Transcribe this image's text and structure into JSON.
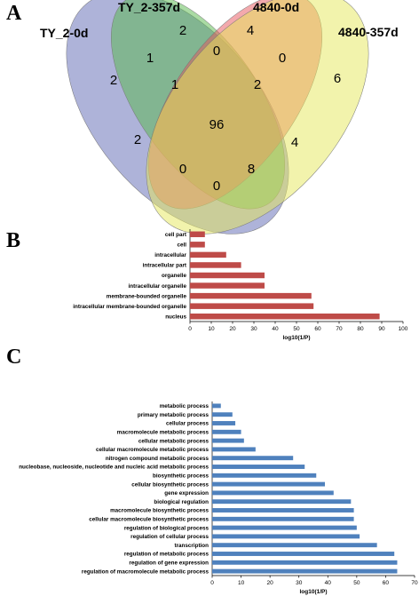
{
  "panels": {
    "a": "A",
    "b": "B",
    "c": "C"
  },
  "chart_data": [
    {
      "type": "venn",
      "panel": "A",
      "sets": [
        "TY_2-0d",
        "TY_2-357d",
        "4840-0d",
        "4840-357d"
      ],
      "colors": [
        "#5e67b4",
        "#56b74a",
        "#e8545c",
        "#e6e85a"
      ],
      "regions": [
        {
          "sets": [
            "TY_2-0d"
          ],
          "value": 2
        },
        {
          "sets": [
            "TY_2-357d"
          ],
          "value": 2
        },
        {
          "sets": [
            "4840-0d"
          ],
          "value": 4
        },
        {
          "sets": [
            "4840-357d"
          ],
          "value": 6
        },
        {
          "sets": [
            "TY_2-0d",
            "TY_2-357d"
          ],
          "value": 1
        },
        {
          "sets": [
            "TY_2-357d",
            "4840-0d"
          ],
          "value": 0
        },
        {
          "sets": [
            "4840-0d",
            "4840-357d"
          ],
          "value": 0
        },
        {
          "sets": [
            "TY_2-0d",
            "TY_2-357d",
            "4840-0d"
          ],
          "value": 1
        },
        {
          "sets": [
            "TY_2-357d",
            "4840-0d",
            "4840-357d"
          ],
          "value": 2
        },
        {
          "sets": [
            "TY_2-0d",
            "TY_2-357d",
            "4840-0d",
            "4840-357d"
          ],
          "value": 96
        },
        {
          "sets": [
            "TY_2-0d",
            "4840-0d"
          ],
          "value": 2
        },
        {
          "sets": [
            "TY_2-357d",
            "4840-357d"
          ],
          "value": 4
        },
        {
          "sets": [
            "TY_2-0d",
            "4840-0d",
            "4840-357d"
          ],
          "value": 0
        },
        {
          "sets": [
            "TY_2-0d",
            "TY_2-357d",
            "4840-357d"
          ],
          "value": 8
        },
        {
          "sets": [
            "TY_2-0d",
            "4840-357d"
          ],
          "value": 0
        }
      ]
    },
    {
      "type": "bar",
      "orientation": "horizontal",
      "panel": "B",
      "color": "#be4b48",
      "categories": [
        "cell part",
        "cell",
        "intracellular",
        "intracellular part",
        "organelle",
        "intracellular organelle",
        "membrane-bounded organelle",
        "intracellular membrane-bounded organelle",
        "nucleus"
      ],
      "values": [
        7,
        7,
        17,
        24,
        35,
        35,
        57,
        58,
        89
      ],
      "xlabel": "log10(1/P)",
      "xlim": [
        0,
        100
      ],
      "xticks": [
        0,
        10,
        20,
        30,
        40,
        50,
        60,
        70,
        80,
        90,
        100
      ],
      "grid": false
    },
    {
      "type": "bar",
      "orientation": "horizontal",
      "panel": "C",
      "color": "#4f81bd",
      "categories": [
        "metabolic process",
        "primary metabolic process",
        "cellular process",
        "macromolecule metabolic process",
        "cellular metabolic process",
        "cellular macromolecule metabolic process",
        "nitrogen compound metabolic process",
        "nucleobase, nucleoside, nucleotide and nucleic acid metabolic process",
        "biosynthetic process",
        "cellular biosynthetic process",
        "gene expression",
        "biological regulation",
        "macromolecule biosynthetic process",
        "cellular macromolecule biosynthetic process",
        "regulation of biological process",
        "regulation of cellular process",
        "transcription",
        "regulation of metabolic process",
        "regulation of gene expression",
        "regulation of macromolecule metabolic process"
      ],
      "values": [
        3,
        7,
        8,
        10,
        11,
        15,
        28,
        32,
        36,
        39,
        42,
        48,
        49,
        49,
        50,
        51,
        57,
        63,
        64,
        64
      ],
      "xlabel": "log10(1/P)",
      "xlim": [
        0,
        70
      ],
      "xticks": [
        0,
        10,
        20,
        30,
        40,
        50,
        60,
        70
      ],
      "grid": false
    }
  ]
}
